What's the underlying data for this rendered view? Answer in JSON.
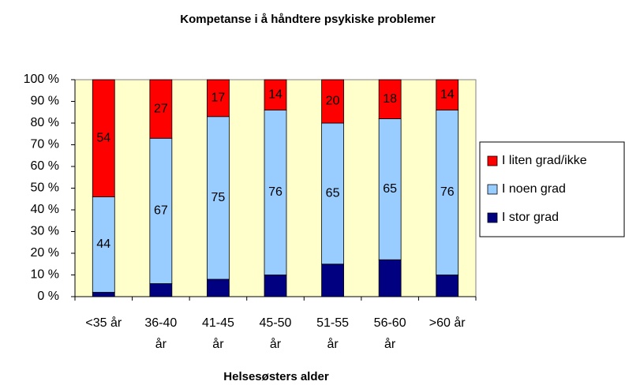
{
  "chart_data": {
    "type": "stacked_bar",
    "title": "Kompetanse i å håndtere psykiske problemer",
    "x_label": "Helsesøsters alder",
    "categories": [
      "<35 år",
      "36-40 år",
      "41-45 år",
      "45-50 år",
      "51-55 år",
      "56-60 år",
      ">60 år"
    ],
    "series": [
      {
        "name": "I stor grad",
        "color": "#000080",
        "values": [
          2,
          6,
          8,
          10,
          15,
          17,
          10
        ],
        "show_labels": false
      },
      {
        "name": "I noen grad",
        "color": "#99CCFF",
        "values": [
          44,
          67,
          75,
          76,
          65,
          65,
          76
        ],
        "show_labels": true
      },
      {
        "name": "I liten grad/ikke",
        "color": "#FF0000",
        "values": [
          54,
          27,
          17,
          14,
          20,
          18,
          14
        ],
        "show_labels": true
      }
    ],
    "ylim": [
      0,
      100
    ],
    "yticks": [
      {
        "value": 0,
        "label": "0 %"
      },
      {
        "value": 10,
        "label": "10 %"
      },
      {
        "value": 20,
        "label": "20 %"
      },
      {
        "value": 30,
        "label": "30 %"
      },
      {
        "value": 40,
        "label": "40 %"
      },
      {
        "value": 50,
        "label": "50 %"
      },
      {
        "value": 60,
        "label": "60 %"
      },
      {
        "value": 70,
        "label": "70 %"
      },
      {
        "value": 80,
        "label": "80 %"
      },
      {
        "value": 90,
        "label": "90 %"
      },
      {
        "value": 100,
        "label": "100 %"
      }
    ],
    "plot_background": "#FFFFCC",
    "legend": "right"
  }
}
